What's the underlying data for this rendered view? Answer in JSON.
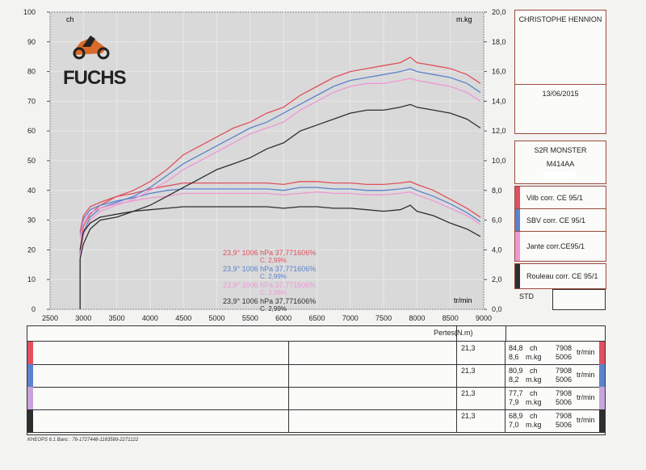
{
  "chart_data": {
    "type": "line",
    "xlabel": "tr/min",
    "ylabel_left": "ch",
    "ylabel_right": "m.kg",
    "xlim": [
      2500,
      9000
    ],
    "ylim_left": [
      0,
      100
    ],
    "ylim_right": [
      0,
      20
    ],
    "x_ticks": [
      "2500",
      "3000",
      "3500",
      "4000",
      "4500",
      "5000",
      "5500",
      "6000",
      "6500",
      "7000",
      "7500",
      "8000",
      "8500",
      "9000"
    ],
    "y_ticks_left": [
      "0",
      "10",
      "20",
      "30",
      "40",
      "50",
      "60",
      "70",
      "80",
      "90",
      "100"
    ],
    "y_ticks_right": [
      "0,0",
      "2,0",
      "4,0",
      "6,0",
      "8,0",
      "10,0",
      "12,0",
      "14,0",
      "16,0",
      "18,0",
      "20,0"
    ],
    "x": [
      2950,
      3000,
      3100,
      3250,
      3500,
      3750,
      4000,
      4250,
      4500,
      4750,
      5000,
      5250,
      5500,
      5750,
      6000,
      6250,
      6500,
      6750,
      7000,
      7250,
      7500,
      7750,
      7900,
      8000,
      8250,
      8500,
      8750,
      8950
    ],
    "series": [
      {
        "name": "Vilb corr. CE 95/1",
        "color": "#e0505e",
        "power": [
          20,
          28,
          32,
          35,
          38,
          40,
          43,
          47,
          52,
          55,
          58,
          61,
          63,
          66,
          68,
          72,
          75,
          78,
          80,
          81,
          82,
          83,
          84.8,
          83,
          82,
          81,
          79,
          76
        ],
        "torque": [
          5.2,
          6.3,
          6.9,
          7.2,
          7.6,
          7.8,
          8.1,
          8.3,
          8.5,
          8.5,
          8.5,
          8.5,
          8.5,
          8.5,
          8.4,
          8.6,
          8.6,
          8.5,
          8.5,
          8.4,
          8.4,
          8.5,
          8.6,
          8.4,
          8.0,
          7.4,
          6.8,
          6.2
        ]
      },
      {
        "name": "SBV corr. CE 95/1",
        "color": "#5b82cc",
        "power": [
          19,
          26,
          31,
          34,
          36,
          38,
          41,
          45,
          49,
          52,
          55,
          58,
          61,
          63,
          66,
          69,
          72,
          75,
          77,
          78,
          79,
          80,
          80.9,
          80,
          79,
          78,
          76,
          73
        ],
        "torque": [
          5.0,
          6.1,
          6.7,
          7.0,
          7.3,
          7.5,
          7.8,
          8.0,
          8.1,
          8.1,
          8.1,
          8.1,
          8.1,
          8.1,
          8.0,
          8.2,
          8.2,
          8.1,
          8.1,
          8.0,
          8.0,
          8.1,
          8.2,
          8.0,
          7.6,
          7.1,
          6.5,
          5.9
        ]
      },
      {
        "name": "Jante corr.CE95/1",
        "color": "#ee98d5",
        "power": [
          18,
          25,
          30,
          33,
          35,
          37,
          40,
          43,
          47,
          50,
          53,
          56,
          59,
          61,
          63,
          67,
          70,
          73,
          75,
          76,
          76,
          77,
          77.7,
          77,
          76,
          75,
          73,
          70
        ],
        "torque": [
          4.8,
          5.9,
          6.5,
          6.8,
          7.1,
          7.3,
          7.5,
          7.6,
          7.8,
          7.8,
          7.8,
          7.8,
          7.8,
          7.8,
          7.7,
          7.8,
          7.9,
          7.8,
          7.8,
          7.7,
          7.7,
          7.8,
          7.9,
          7.7,
          7.3,
          6.8,
          6.3,
          5.7
        ]
      },
      {
        "name": "Rouleau corr. CE 95/1",
        "color": "#2e2e2e",
        "power": [
          17,
          22,
          27,
          30,
          31,
          33,
          35,
          38,
          41,
          44,
          47,
          49,
          51,
          54,
          56,
          60,
          62,
          64,
          66,
          67,
          67,
          68,
          68.9,
          68,
          67,
          66,
          64,
          61
        ],
        "torque": [
          4.0,
          5.2,
          5.8,
          6.2,
          6.4,
          6.6,
          6.7,
          6.8,
          6.9,
          6.9,
          6.9,
          6.9,
          6.9,
          6.9,
          6.8,
          6.9,
          6.9,
          6.8,
          6.8,
          6.7,
          6.6,
          6.7,
          7.0,
          6.6,
          6.3,
          5.8,
          5.4,
          4.9
        ]
      }
    ]
  },
  "logo": {
    "text": "FUCHS"
  },
  "conditions": [
    {
      "line": "23,9°  1006 hPa  37,771606%",
      "sub": "C. 2,99%",
      "color": "#e0505e"
    },
    {
      "line": "23,9°  1006 hPa  37,771606%",
      "sub": "C. 2,99%",
      "color": "#5b82cc"
    },
    {
      "line": "23,9°  1006 hPa  37,771606%",
      "sub": "C. 2,99%",
      "color": "#ee98d5"
    },
    {
      "line": "23,9°  1006 hPa  37,771606%",
      "sub": "C. 2,99%",
      "color": "#2e2e2e"
    }
  ],
  "info": {
    "name": "CHRISTOPHE HENNION",
    "date": "13/06/2015",
    "model": "S2R MONSTER",
    "plate": "M414AA",
    "std": "STD"
  },
  "table": {
    "header": "Pertes(N.m)",
    "rows": [
      {
        "loss": "21,3",
        "power": "84,8",
        "torque": "8,6",
        "power_unit": "ch",
        "torque_unit": "m.kg",
        "rpm_power": "7908",
        "rpm_torque": "5006",
        "rpm_unit": "tr/min",
        "color": "#e0505e"
      },
      {
        "loss": "21,3",
        "power": "80,9",
        "torque": "8,2",
        "power_unit": "ch",
        "torque_unit": "m.kg",
        "rpm_power": "7908",
        "rpm_torque": "5006",
        "rpm_unit": "tr/min",
        "color": "#5b82cc"
      },
      {
        "loss": "21,3",
        "power": "77,7",
        "torque": "7,9",
        "power_unit": "ch",
        "torque_unit": "m.kg",
        "rpm_power": "7908",
        "rpm_torque": "5006",
        "rpm_unit": "tr/min",
        "color": "#c9a3dc"
      },
      {
        "loss": "21,3",
        "power": "68,9",
        "torque": "7,0",
        "power_unit": "ch",
        "torque_unit": "m.kg",
        "rpm_power": "7908",
        "rpm_torque": "5006",
        "rpm_unit": "tr/min",
        "color": "#2e2e2e"
      }
    ]
  },
  "footer": "KHEOPS 6.1  Banc : 76-1727448-1183589-2271122"
}
